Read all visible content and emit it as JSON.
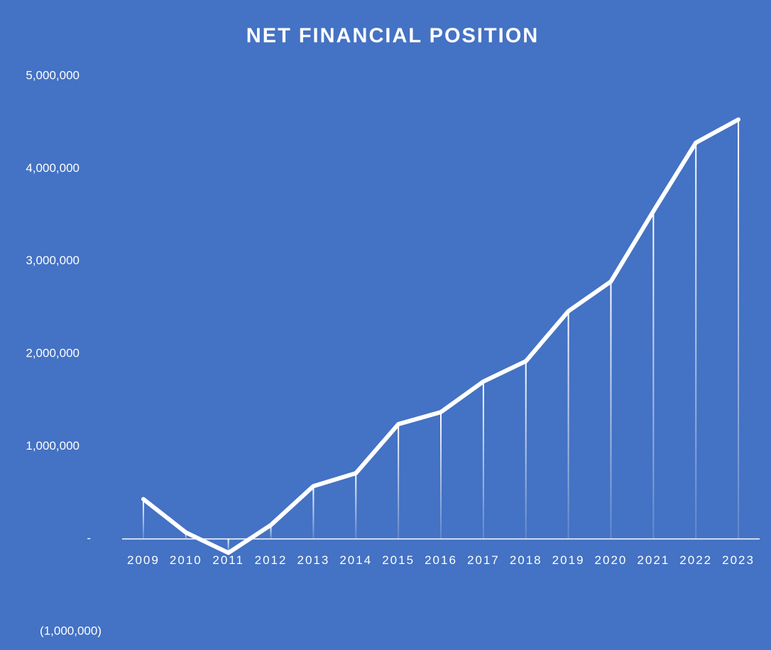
{
  "chart_data": {
    "type": "line",
    "title": "NET FINANCIAL POSITION",
    "categories": [
      "2009",
      "2010",
      "2011",
      "2012",
      "2013",
      "2014",
      "2015",
      "2016",
      "2017",
      "2018",
      "2019",
      "2020",
      "2021",
      "2022",
      "2023"
    ],
    "series": [
      {
        "name": "Net Financial Position",
        "color": "#ffffff",
        "values": [
          430000,
          70000,
          -150000,
          150000,
          570000,
          710000,
          1240000,
          1370000,
          1700000,
          1920000,
          2460000,
          2780000,
          3540000,
          4280000,
          4530000
        ]
      }
    ],
    "ylim": [
      -1000000,
      5000000
    ],
    "yticks": [
      {
        "value": -1000000,
        "label": "(1,000,000)"
      },
      {
        "value": 0,
        "label": "-"
      },
      {
        "value": 1000000,
        "label": "1,000,000"
      },
      {
        "value": 2000000,
        "label": "2,000,000"
      },
      {
        "value": 3000000,
        "label": "3,000,000"
      },
      {
        "value": 4000000,
        "label": "4,000,000"
      },
      {
        "value": 5000000,
        "label": "5,000,000"
      }
    ],
    "grid": false,
    "drop_lines": true
  }
}
